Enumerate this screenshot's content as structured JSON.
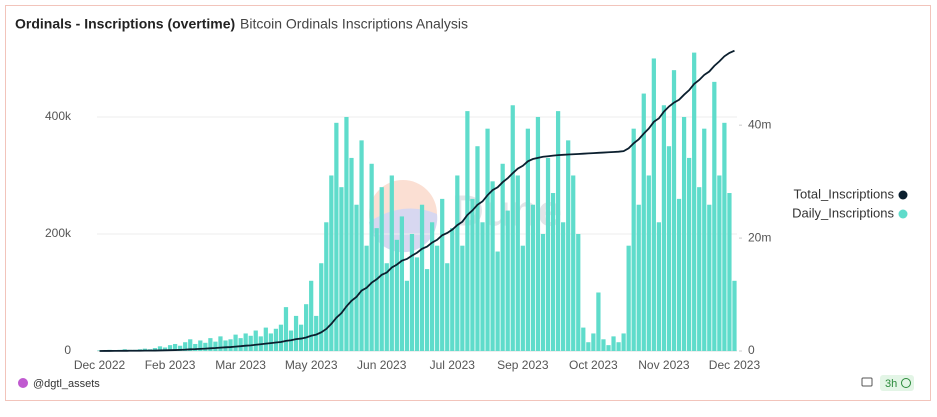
{
  "chart_data": {
    "type": "bar",
    "title": "Ordinals - Inscriptions (overtime)",
    "subtitle": "Bitcoin Ordinals Inscriptions Analysis",
    "watermark": "Dune",
    "author": "@dgtl_assets",
    "refresh": "3h",
    "categories": [
      "Dec 2022",
      null,
      null,
      null,
      null,
      null,
      null,
      null,
      null,
      null,
      null,
      null,
      null,
      null,
      "Feb 2023",
      null,
      null,
      null,
      null,
      null,
      null,
      null,
      null,
      null,
      null,
      null,
      null,
      null,
      "Mar 2023",
      null,
      null,
      null,
      null,
      null,
      null,
      null,
      null,
      null,
      null,
      null,
      null,
      null,
      "May 2023",
      null,
      null,
      null,
      null,
      null,
      null,
      null,
      null,
      null,
      null,
      null,
      null,
      null,
      "Jun 2023",
      null,
      null,
      null,
      null,
      null,
      null,
      null,
      null,
      null,
      null,
      null,
      null,
      null,
      "Jul 2023",
      null,
      null,
      null,
      null,
      null,
      null,
      null,
      null,
      null,
      null,
      null,
      null,
      null,
      "Sep 2023",
      null,
      null,
      null,
      null,
      null,
      null,
      null,
      null,
      null,
      null,
      null,
      null,
      null,
      "Oct 2023",
      null,
      null,
      null,
      null,
      null,
      null,
      null,
      null,
      null,
      null,
      null,
      null,
      null,
      "Nov 2023",
      null,
      null,
      null,
      null,
      null,
      null,
      null,
      null,
      null,
      null,
      null,
      null,
      null,
      "Dec 2023"
    ],
    "series": [
      {
        "name": "Total_Inscriptions",
        "type": "line",
        "axis": "y2",
        "color": "#0b1f2e",
        "values": [
          0,
          10000,
          10000,
          20000,
          20000,
          30000,
          40000,
          40000,
          50000,
          60000,
          70000,
          80000,
          100000,
          120000,
          140000,
          170000,
          200000,
          240000,
          300000,
          330000,
          380000,
          420000,
          480000,
          530000,
          600000,
          650000,
          700000,
          780000,
          850000,
          940000,
          1000000,
          1100000,
          1200000,
          1300000,
          1400000,
          1500000,
          1600000,
          1800000,
          1900000,
          2100000,
          2200000,
          2400000,
          2700000,
          2900000,
          3300000,
          3900000,
          4800000,
          5900000,
          6700000,
          7900000,
          8900000,
          9600000,
          10700000,
          11200000,
          12100000,
          12700000,
          13500000,
          13900000,
          14800000,
          15300000,
          16000000,
          16300000,
          16900000,
          17400000,
          18100000,
          18500000,
          19200000,
          19700000,
          20500000,
          20900000,
          21500000,
          22300000,
          22900000,
          24100000,
          24900000,
          25900000,
          26500000,
          27600000,
          28500000,
          29000000,
          29900000,
          30600000,
          31500000,
          32300000,
          32800000,
          33600000,
          34000000,
          34200000,
          34400000,
          34500000,
          34600000,
          34700000,
          34750000,
          34800000,
          34850000,
          34900000,
          34950000,
          35000000,
          35050000,
          35100000,
          35150000,
          35200000,
          35250000,
          35300000,
          35400000,
          35900000,
          36800000,
          37500000,
          38500000,
          39400000,
          40600000,
          41200000,
          42400000,
          43300000,
          44000000,
          44500000,
          45400000,
          46200000,
          47300000,
          48000000,
          48900000,
          49500000,
          50500000,
          51300000,
          52200000,
          52800000,
          53200000
        ]
      },
      {
        "name": "Daily_Inscriptions",
        "type": "bar",
        "axis": "y",
        "color": "#5fdccb",
        "values": [
          1000,
          1000,
          2000,
          1000,
          2000,
          3000,
          2000,
          2000,
          3000,
          4000,
          3000,
          5000,
          8000,
          6000,
          10000,
          12000,
          9000,
          15000,
          20000,
          12000,
          18000,
          14000,
          22000,
          16000,
          25000,
          18000,
          20000,
          28000,
          22000,
          30000,
          26000,
          35000,
          25000,
          40000,
          30000,
          38000,
          45000,
          75000,
          35000,
          60000,
          45000,
          80000,
          120000,
          60000,
          150000,
          220000,
          300000,
          390000,
          280000,
          400000,
          330000,
          250000,
          360000,
          180000,
          320000,
          210000,
          280000,
          150000,
          300000,
          190000,
          230000,
          120000,
          200000,
          160000,
          250000,
          140000,
          220000,
          180000,
          260000,
          150000,
          210000,
          300000,
          180000,
          410000,
          260000,
          350000,
          220000,
          380000,
          290000,
          170000,
          320000,
          240000,
          420000,
          300000,
          180000,
          380000,
          250000,
          400000,
          200000,
          330000,
          270000,
          410000,
          220000,
          360000,
          300000,
          200000,
          40000,
          15000,
          30000,
          100000,
          20000,
          10000,
          25000,
          15000,
          30000,
          180000,
          380000,
          250000,
          440000,
          300000,
          500000,
          220000,
          420000,
          350000,
          480000,
          260000,
          400000,
          330000,
          510000,
          280000,
          380000,
          250000,
          460000,
          300000,
          390000,
          270000,
          120000
        ]
      }
    ],
    "ylim": [
      0,
      523000
    ],
    "yticks": [
      0,
      {
        "value": 200000,
        "label": "200k"
      },
      {
        "value": 400000,
        "label": "400k"
      }
    ],
    "y2lim": [
      0,
      54200000
    ],
    "y2ticks": [
      0,
      {
        "value": 20000000,
        "label": "20m"
      },
      {
        "value": 40000000,
        "label": "40m"
      }
    ],
    "grid": true
  }
}
